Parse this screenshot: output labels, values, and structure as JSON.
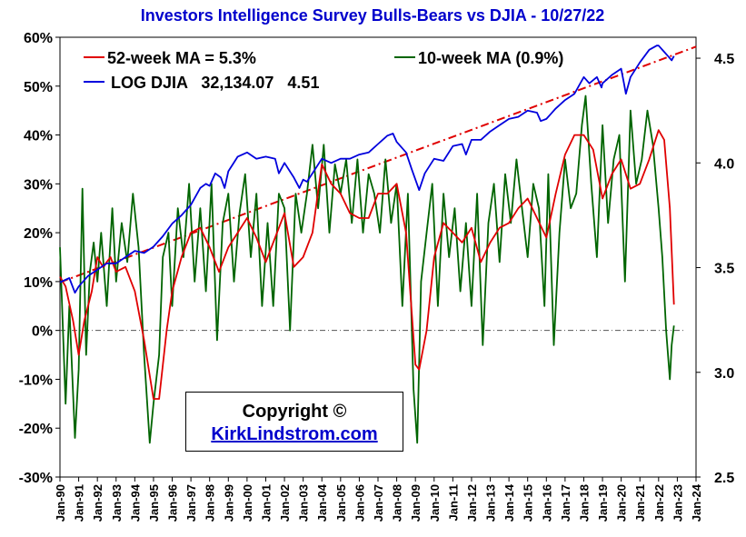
{
  "chart_data": {
    "type": "line",
    "title": "Investors Intelligence Survey Bulls-Bears vs DJIA - 10/27/22",
    "x_range": [
      1990,
      2024
    ],
    "x_tick_labels": [
      "Jan-90",
      "Jan-91",
      "Jan-92",
      "Jan-93",
      "Jan-94",
      "Jan-95",
      "Jan-96",
      "Jan-97",
      "Jan-98",
      "Jan-99",
      "Jan-00",
      "Jan-01",
      "Jan-02",
      "Jan-03",
      "Jan-04",
      "Jan-05",
      "Jan-06",
      "Jan-07",
      "Jan-08",
      "Jan-09",
      "Jan-10",
      "Jan-11",
      "Jan-12",
      "Jan-13",
      "Jan-14",
      "Jan-15",
      "Jan-16",
      "Jan-17",
      "Jan-18",
      "Jan-19",
      "Jan-20",
      "Jan-21",
      "Jan-22",
      "Jan-23",
      "Jan-24"
    ],
    "left_axis": {
      "unit": "%",
      "range": [
        -30,
        60
      ],
      "tick_labels": [
        "60%",
        "50%",
        "40%",
        "30%",
        "20%",
        "10%",
        "0%",
        "-10%",
        "-20%",
        "-30%"
      ],
      "tick_values": [
        60,
        50,
        40,
        30,
        20,
        10,
        0,
        -10,
        -20,
        -30
      ]
    },
    "right_axis": {
      "unit": "log DJIA",
      "range": [
        2.5,
        4.6
      ],
      "tick_labels": [
        "4.5",
        "4.0",
        "3.5",
        "3.0",
        "2.5"
      ],
      "tick_values": [
        4.5,
        4.0,
        3.5,
        3.0,
        2.5
      ]
    },
    "legend": {
      "ma52": "52-week MA = 5.3%",
      "ma10": "10-week MA (0.9%)",
      "djia": "LOG DJIA   32,134.07   4.51"
    },
    "colors": {
      "ma52": "#e00000",
      "ma10": "#006400",
      "djia": "#0000dd",
      "trend": "#e00000",
      "title": "#0000cc"
    },
    "trend_line": {
      "x": [
        1990,
        2024
      ],
      "y": [
        3.43,
        4.555
      ],
      "axis": "right"
    },
    "zero_line": {
      "y": 0,
      "axis": "left"
    },
    "series": [
      {
        "name": "52-week MA",
        "axis": "left",
        "x": [
          1990.0,
          1990.3,
          1990.7,
          1991.0,
          1991.3,
          1991.7,
          1992.0,
          1992.3,
          1992.7,
          1993.0,
          1993.5,
          1994.0,
          1994.5,
          1995.0,
          1995.3,
          1995.7,
          1996.0,
          1996.5,
          1997.0,
          1997.5,
          1998.0,
          1998.5,
          1999.0,
          1999.5,
          2000.0,
          2000.5,
          2001.0,
          2001.5,
          2002.0,
          2002.5,
          2003.0,
          2003.5,
          2004.0,
          2004.5,
          2005.0,
          2005.5,
          2006.0,
          2006.5,
          2007.0,
          2007.5,
          2008.0,
          2008.5,
          2009.0,
          2009.2,
          2009.6,
          2010.0,
          2010.5,
          2011.0,
          2011.5,
          2012.0,
          2012.5,
          2013.0,
          2013.5,
          2014.0,
          2014.5,
          2015.0,
          2015.5,
          2016.0,
          2016.5,
          2017.0,
          2017.5,
          2018.0,
          2018.5,
          2019.0,
          2019.5,
          2020.0,
          2020.5,
          2021.0,
          2021.5,
          2022.0,
          2022.3,
          2022.6,
          2022.82
        ],
        "values": [
          11,
          9,
          2,
          -5,
          2,
          8,
          15,
          13,
          15,
          12,
          13,
          8,
          -2,
          -14,
          -14,
          0,
          8,
          15,
          20,
          21,
          17,
          12,
          17,
          20,
          23,
          19,
          14,
          19,
          24,
          13,
          15,
          20,
          34,
          30,
          28,
          24,
          23,
          23,
          28,
          28,
          30,
          20,
          -7,
          -8,
          0,
          15,
          22,
          20,
          18,
          21,
          14,
          18,
          21,
          22,
          25,
          27,
          23,
          19,
          28,
          36,
          40,
          40,
          37,
          27,
          32,
          35,
          29,
          30,
          35,
          41,
          39,
          25,
          5.3
        ]
      },
      {
        "name": "10-week MA",
        "axis": "left",
        "x": [
          1990.0,
          1990.3,
          1990.5,
          1990.8,
          1991.0,
          1991.2,
          1991.4,
          1991.6,
          1991.8,
          1992.0,
          1992.2,
          1992.5,
          1992.8,
          1993.0,
          1993.3,
          1993.6,
          1993.9,
          1994.2,
          1994.5,
          1994.8,
          1995.0,
          1995.3,
          1995.5,
          1995.8,
          1996.0,
          1996.3,
          1996.6,
          1996.9,
          1997.2,
          1997.5,
          1997.8,
          1998.1,
          1998.4,
          1998.7,
          1999.0,
          1999.3,
          1999.6,
          1999.9,
          2000.2,
          2000.5,
          2000.8,
          2001.1,
          2001.4,
          2001.7,
          2002.0,
          2002.3,
          2002.6,
          2002.9,
          2003.2,
          2003.5,
          2003.8,
          2004.1,
          2004.4,
          2004.7,
          2005.0,
          2005.3,
          2005.6,
          2005.9,
          2006.2,
          2006.5,
          2006.8,
          2007.1,
          2007.4,
          2007.7,
          2008.0,
          2008.3,
          2008.6,
          2008.9,
          2009.1,
          2009.3,
          2009.6,
          2009.9,
          2010.2,
          2010.5,
          2010.8,
          2011.1,
          2011.4,
          2011.7,
          2012.0,
          2012.3,
          2012.6,
          2012.9,
          2013.2,
          2013.5,
          2013.8,
          2014.1,
          2014.4,
          2014.7,
          2015.0,
          2015.3,
          2015.6,
          2015.9,
          2016.1,
          2016.4,
          2016.7,
          2017.0,
          2017.3,
          2017.6,
          2017.9,
          2018.1,
          2018.4,
          2018.7,
          2019.0,
          2019.3,
          2019.6,
          2019.9,
          2020.2,
          2020.5,
          2020.8,
          2021.1,
          2021.4,
          2021.7,
          2022.0,
          2022.2,
          2022.4,
          2022.6,
          2022.7,
          2022.82
        ],
        "values": [
          17,
          -15,
          5,
          -22,
          -8,
          29,
          -5,
          12,
          18,
          10,
          20,
          5,
          25,
          10,
          22,
          14,
          28,
          17,
          -5,
          -23,
          -15,
          -5,
          15,
          20,
          5,
          25,
          15,
          30,
          10,
          25,
          8,
          30,
          -2,
          22,
          28,
          10,
          24,
          32,
          15,
          28,
          5,
          22,
          5,
          28,
          25,
          0,
          28,
          20,
          28,
          38,
          25,
          38,
          20,
          34,
          28,
          35,
          22,
          35,
          20,
          32,
          28,
          20,
          35,
          22,
          30,
          5,
          28,
          -12,
          -23,
          10,
          20,
          30,
          5,
          28,
          15,
          25,
          8,
          22,
          5,
          28,
          -3,
          22,
          30,
          14,
          32,
          22,
          35,
          25,
          15,
          30,
          25,
          5,
          32,
          -3,
          20,
          35,
          25,
          28,
          42,
          48,
          30,
          15,
          42,
          22,
          35,
          40,
          10,
          45,
          30,
          35,
          45,
          38,
          25,
          15,
          0,
          -10,
          -3,
          1
        ]
      },
      {
        "name": "LOG DJIA",
        "axis": "right",
        "x": [
          1990.0,
          1990.5,
          1990.8,
          1991.0,
          1991.5,
          1992.0,
          1992.5,
          1993.0,
          1993.5,
          1994.0,
          1994.5,
          1995.0,
          1995.5,
          1996.0,
          1996.5,
          1997.0,
          1997.5,
          1997.8,
          1998.0,
          1998.3,
          1998.6,
          1998.8,
          1999.0,
          1999.5,
          2000.0,
          2000.5,
          2001.0,
          2001.5,
          2001.7,
          2002.0,
          2002.5,
          2002.8,
          2003.0,
          2003.2,
          2003.5,
          2004.0,
          2004.5,
          2005.0,
          2005.5,
          2006.0,
          2006.5,
          2007.0,
          2007.5,
          2007.8,
          2008.0,
          2008.5,
          2008.8,
          2009.0,
          2009.2,
          2009.5,
          2010.0,
          2010.5,
          2011.0,
          2011.5,
          2011.7,
          2012.0,
          2012.5,
          2013.0,
          2013.5,
          2014.0,
          2014.5,
          2015.0,
          2015.5,
          2015.7,
          2016.0,
          2016.2,
          2016.5,
          2017.0,
          2017.5,
          2018.0,
          2018.3,
          2018.7,
          2018.95,
          2019.0,
          2019.5,
          2020.0,
          2020.15,
          2020.25,
          2020.5,
          2021.0,
          2021.5,
          2021.9,
          2022.0,
          2022.3,
          2022.5,
          2022.7,
          2022.82
        ],
        "values": [
          3.43,
          3.45,
          3.38,
          3.41,
          3.46,
          3.49,
          3.52,
          3.52,
          3.55,
          3.58,
          3.57,
          3.6,
          3.65,
          3.71,
          3.75,
          3.8,
          3.88,
          3.9,
          3.89,
          3.95,
          3.93,
          3.88,
          3.96,
          4.03,
          4.05,
          4.02,
          4.03,
          4.02,
          3.95,
          4.0,
          3.93,
          3.88,
          3.92,
          3.91,
          3.95,
          4.02,
          4.0,
          4.02,
          4.02,
          4.04,
          4.05,
          4.09,
          4.13,
          4.14,
          4.1,
          4.05,
          3.97,
          3.92,
          3.87,
          3.95,
          4.02,
          4.01,
          4.08,
          4.09,
          4.04,
          4.11,
          4.11,
          4.15,
          4.18,
          4.21,
          4.22,
          4.25,
          4.24,
          4.2,
          4.21,
          4.23,
          4.26,
          4.3,
          4.33,
          4.41,
          4.38,
          4.41,
          4.36,
          4.38,
          4.42,
          4.45,
          4.38,
          4.33,
          4.41,
          4.48,
          4.54,
          4.56,
          4.56,
          4.53,
          4.51,
          4.49,
          4.51
        ]
      }
    ]
  },
  "copyright": {
    "text": "Copyright ©",
    "link": "KirkLindstrom.com"
  }
}
